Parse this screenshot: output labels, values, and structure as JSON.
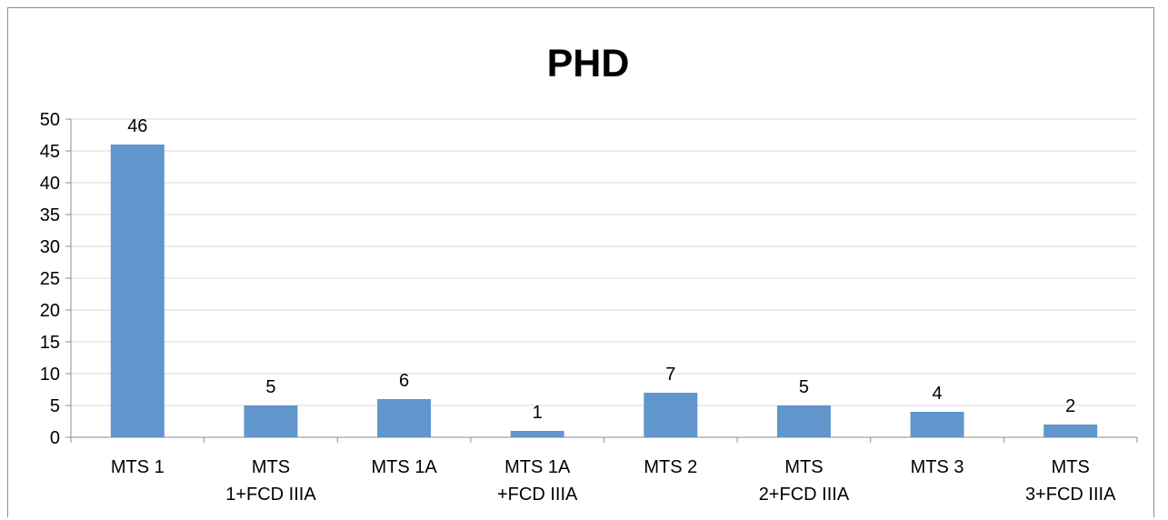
{
  "chart_data": {
    "type": "bar",
    "title": "PHD",
    "xlabel": "",
    "ylabel": "",
    "ylim": [
      0,
      50
    ],
    "yticks": [
      0,
      5,
      10,
      15,
      20,
      25,
      30,
      35,
      40,
      45,
      50
    ],
    "grid": true,
    "legend": "none",
    "bar_color": "#6096CC",
    "categories": [
      [
        "MTS 1"
      ],
      [
        "MTS",
        "1+FCD IIIA"
      ],
      [
        "MTS 1A"
      ],
      [
        "MTS 1A",
        "+FCD IIIA"
      ],
      [
        "MTS 2"
      ],
      [
        "MTS",
        "2+FCD IIIA"
      ],
      [
        "MTS 3"
      ],
      [
        "MTS",
        "3+FCD IIIA"
      ]
    ],
    "values": [
      46,
      5,
      6,
      1,
      7,
      5,
      4,
      2
    ]
  }
}
